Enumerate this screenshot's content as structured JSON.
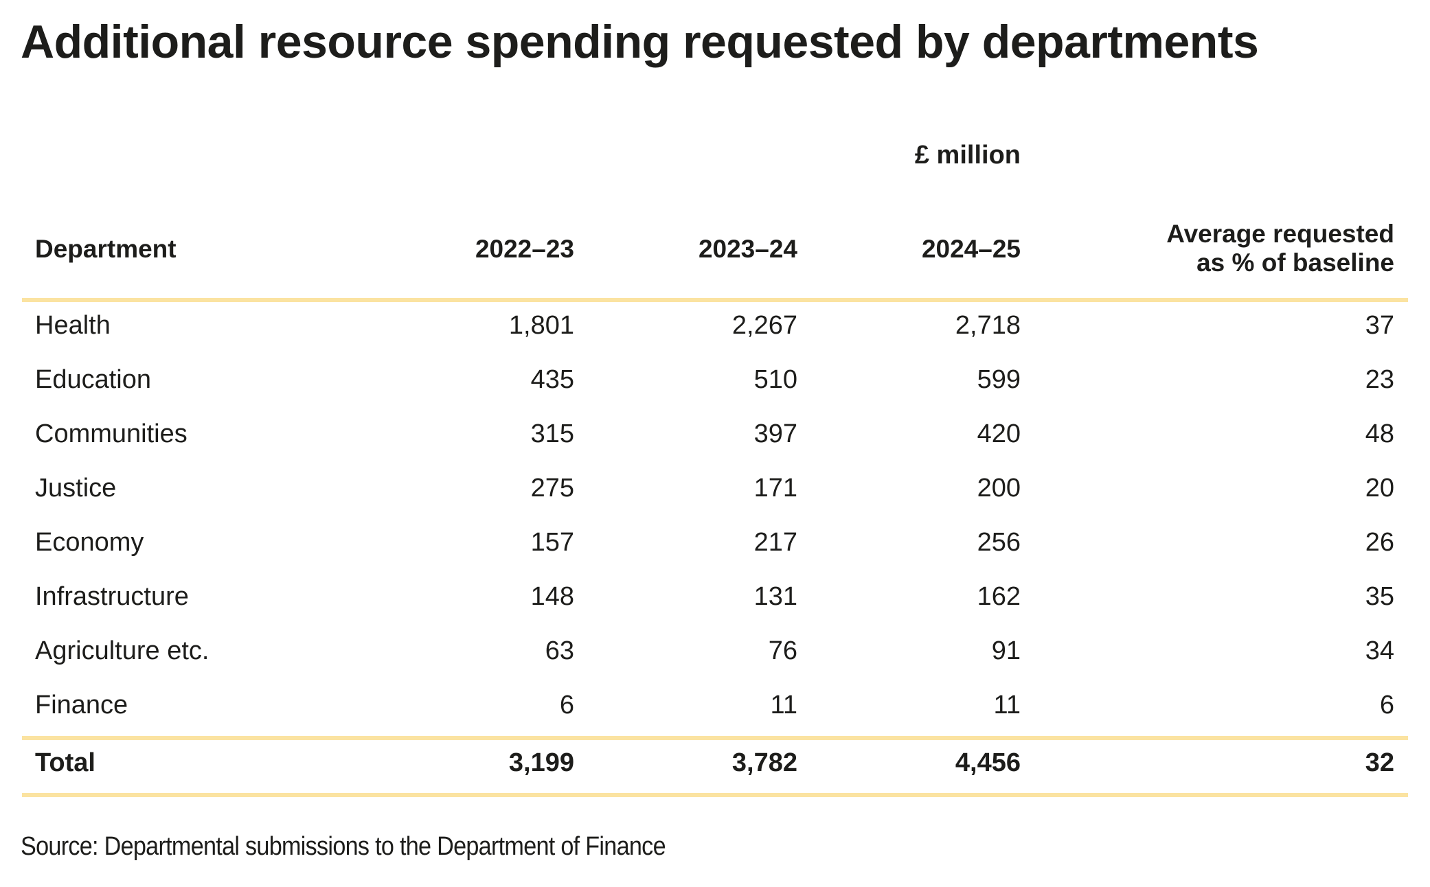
{
  "title": "Additional resource spending requested by departments",
  "unit_label": "£ million",
  "columns": {
    "department": "Department",
    "y1": "2022–23",
    "y2": "2023–24",
    "y3": "2024–25",
    "avg_line1": "Average requested",
    "avg_line2": "as % of baseline"
  },
  "rows": [
    {
      "department": "Health",
      "y1": "1,801",
      "y2": "2,267",
      "y3": "2,718",
      "avg": "37"
    },
    {
      "department": "Education",
      "y1": "435",
      "y2": "510",
      "y3": "599",
      "avg": "23"
    },
    {
      "department": "Communities",
      "y1": "315",
      "y2": "397",
      "y3": "420",
      "avg": "48"
    },
    {
      "department": "Justice",
      "y1": "275",
      "y2": "171",
      "y3": "200",
      "avg": "20"
    },
    {
      "department": "Economy",
      "y1": "157",
      "y2": "217",
      "y3": "256",
      "avg": "26"
    },
    {
      "department": "Infrastructure",
      "y1": "148",
      "y2": "131",
      "y3": "162",
      "avg": "35"
    },
    {
      "department": "Agriculture etc.",
      "y1": "63",
      "y2": "76",
      "y3": "91",
      "avg": "34"
    },
    {
      "department": "Finance",
      "y1": "6",
      "y2": "11",
      "y3": "11",
      "avg": "6"
    }
  ],
  "total": {
    "department": "Total",
    "y1": "3,199",
    "y2": "3,782",
    "y3": "4,456",
    "avg": "32"
  },
  "source": "Source: Departmental submissions to the Department of Finance",
  "colors": {
    "rule": "#fbe3a1",
    "text": "#1d1d1b"
  }
}
